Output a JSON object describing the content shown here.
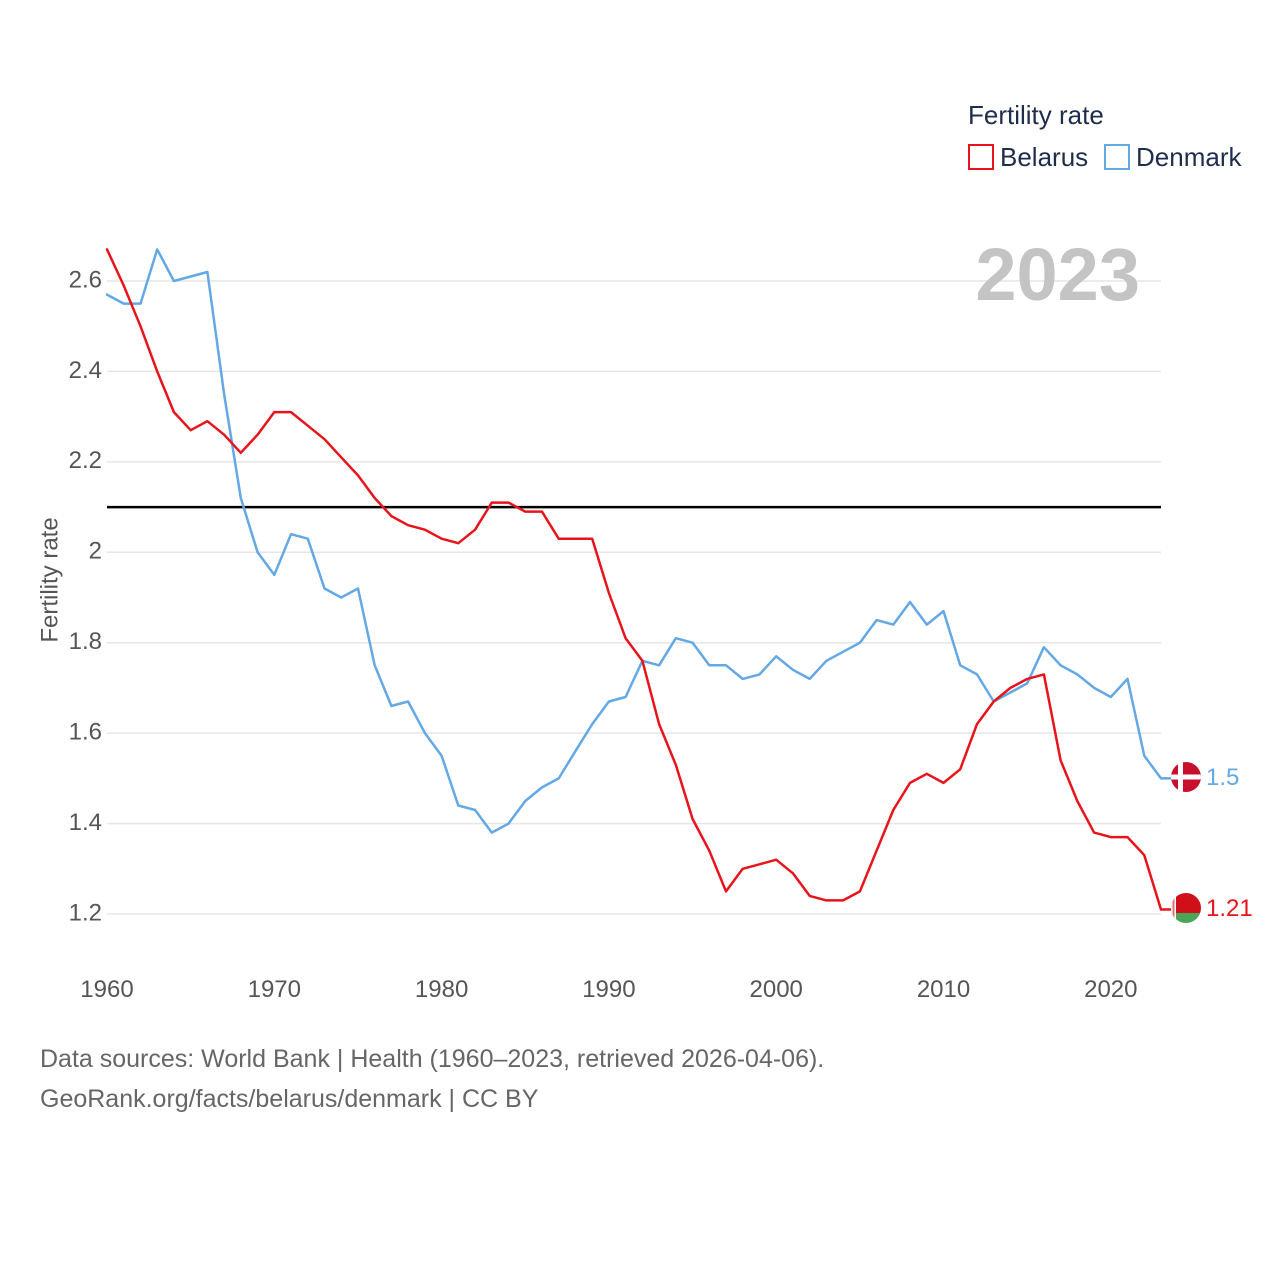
{
  "chart_data": {
    "type": "line",
    "ylabel": "Fertility rate",
    "xlabel": "",
    "xlim": [
      1960,
      2023
    ],
    "ylim": [
      1.1,
      2.7
    ],
    "yticks": [
      1.2,
      1.4,
      1.6,
      1.8,
      2.0,
      2.2,
      2.4,
      2.6
    ],
    "ytick_labels": [
      "1.2",
      "1.4",
      "1.6",
      "1.8",
      "2",
      "2.2",
      "2.4",
      "2.6"
    ],
    "xticks": [
      1960,
      1970,
      1980,
      1990,
      2000,
      2010,
      2020
    ],
    "xtick_labels": [
      "1960",
      "1970",
      "1980",
      "1990",
      "2000",
      "2010",
      "2020"
    ],
    "reference_line": 2.1,
    "current_year_label": "2023",
    "legend_title": "Fertility rate",
    "legend_position": "top-right",
    "x": [
      1960,
      1961,
      1962,
      1963,
      1964,
      1965,
      1966,
      1967,
      1968,
      1969,
      1970,
      1971,
      1972,
      1973,
      1974,
      1975,
      1976,
      1977,
      1978,
      1979,
      1980,
      1981,
      1982,
      1983,
      1984,
      1985,
      1986,
      1987,
      1988,
      1989,
      1990,
      1991,
      1992,
      1993,
      1994,
      1995,
      1996,
      1997,
      1998,
      1999,
      2000,
      2001,
      2002,
      2003,
      2004,
      2005,
      2006,
      2007,
      2008,
      2009,
      2010,
      2011,
      2012,
      2013,
      2014,
      2015,
      2016,
      2017,
      2018,
      2019,
      2020,
      2021,
      2022,
      2023
    ],
    "series": [
      {
        "name": "Belarus",
        "color": "#e8141b",
        "end_label": "1.21",
        "flag": "belarus-flag-icon",
        "values": [
          2.67,
          2.59,
          2.5,
          2.4,
          2.31,
          2.27,
          2.29,
          2.26,
          2.22,
          2.26,
          2.31,
          2.31,
          2.28,
          2.25,
          2.21,
          2.17,
          2.12,
          2.08,
          2.06,
          2.05,
          2.03,
          2.02,
          2.05,
          2.11,
          2.11,
          2.09,
          2.09,
          2.03,
          2.03,
          2.03,
          1.91,
          1.81,
          1.76,
          1.62,
          1.53,
          1.41,
          1.34,
          1.25,
          1.3,
          1.31,
          1.32,
          1.29,
          1.24,
          1.23,
          1.23,
          1.25,
          1.34,
          1.43,
          1.49,
          1.51,
          1.49,
          1.52,
          1.62,
          1.67,
          1.7,
          1.72,
          1.73,
          1.54,
          1.45,
          1.38,
          1.37,
          1.37,
          1.33,
          1.21
        ]
      },
      {
        "name": "Denmark",
        "color": "#64a8e6",
        "end_label": "1.5",
        "flag": "denmark-flag-icon",
        "values": [
          2.57,
          2.55,
          2.55,
          2.67,
          2.6,
          2.61,
          2.62,
          2.35,
          2.12,
          2.0,
          1.95,
          2.04,
          2.03,
          1.92,
          1.9,
          1.92,
          1.75,
          1.66,
          1.67,
          1.6,
          1.55,
          1.44,
          1.43,
          1.38,
          1.4,
          1.45,
          1.48,
          1.5,
          1.56,
          1.62,
          1.67,
          1.68,
          1.76,
          1.75,
          1.81,
          1.8,
          1.75,
          1.75,
          1.72,
          1.73,
          1.77,
          1.74,
          1.72,
          1.76,
          1.78,
          1.8,
          1.85,
          1.84,
          1.89,
          1.84,
          1.87,
          1.75,
          1.73,
          1.67,
          1.69,
          1.71,
          1.79,
          1.75,
          1.73,
          1.7,
          1.68,
          1.72,
          1.55,
          1.5
        ]
      }
    ]
  },
  "footer": {
    "line1": "Data sources: World Bank | Health (1960–2023, retrieved 2026-04-06).",
    "line2": "GeoRank.org/facts/belarus/denmark | CC BY"
  }
}
